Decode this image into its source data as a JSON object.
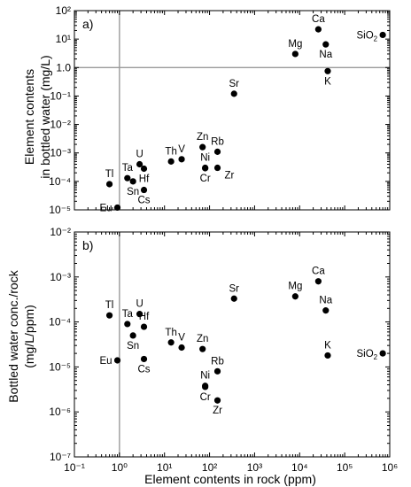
{
  "chart_data": [
    {
      "type": "scatter",
      "panel_label": "a)",
      "ylabel_lines": [
        "Element contents",
        "in bottled water (mg/L)"
      ],
      "xscale": "log",
      "yscale": "log",
      "xlim": [
        0.1,
        1000000
      ],
      "ylim": [
        1e-05,
        100
      ],
      "y_tick_exponents": [
        -5,
        -4,
        -3,
        -2,
        -1,
        0,
        1,
        2
      ],
      "y_tick_labels": [
        "10⁻⁵",
        "10⁻⁴",
        "10⁻³",
        "10⁻²",
        "10⁻¹",
        "1.0",
        "10¹",
        "10²"
      ],
      "reference_lines": {
        "x": 1,
        "y": 1
      },
      "points": [
        {
          "label": "Ca",
          "x": 26000,
          "y": 22,
          "pos": "above"
        },
        {
          "label": "Mg",
          "x": 8000,
          "y": 3,
          "pos": "above"
        },
        {
          "label": "Na",
          "x": 38000,
          "y": 6.5,
          "pos": "below"
        },
        {
          "label": "K",
          "x": 42000,
          "y": 0.75,
          "pos": "below"
        },
        {
          "label": "SiO",
          "sub": "2",
          "x": 700000,
          "y": 14,
          "pos": "left"
        },
        {
          "label": "Sr",
          "x": 350,
          "y": 0.12,
          "pos": "above"
        },
        {
          "label": "Zn",
          "x": 70,
          "y": 0.0016,
          "pos": "above"
        },
        {
          "label": "Rb",
          "x": 150,
          "y": 0.0011,
          "pos": "above"
        },
        {
          "label": "Th",
          "x": 14,
          "y": 0.0005,
          "pos": "above"
        },
        {
          "label": "V",
          "x": 24,
          "y": 0.0006,
          "pos": "above"
        },
        {
          "label": "Ni",
          "x": 80,
          "y": 0.0003,
          "pos": "above"
        },
        {
          "label": "Cr",
          "x": 80,
          "y": 0.00029,
          "pos": "below"
        },
        {
          "label": "Zr",
          "x": 150,
          "y": 0.0003,
          "pos": "right"
        },
        {
          "label": "U",
          "x": 2.8,
          "y": 0.0004,
          "pos": "above"
        },
        {
          "label": "Ta",
          "x": 1.5,
          "y": 0.00013,
          "pos": "above"
        },
        {
          "label": "Hf",
          "x": 3.5,
          "y": 0.00028,
          "pos": "below"
        },
        {
          "label": "Sn",
          "x": 2,
          "y": 0.0001,
          "pos": "below"
        },
        {
          "label": "Cs",
          "x": 3.5,
          "y": 5e-05,
          "pos": "below"
        },
        {
          "label": "Tl",
          "x": 0.6,
          "y": 8e-05,
          "pos": "above"
        },
        {
          "label": "Eu",
          "x": 0.9,
          "y": 1.2e-05,
          "pos": "left"
        }
      ]
    },
    {
      "type": "scatter",
      "panel_label": "b)",
      "ylabel_lines": [
        "Bottled water conc./rock",
        "(mg/L/ppm)"
      ],
      "xlabel": "Element contents in rock (ppm)",
      "xscale": "log",
      "yscale": "log",
      "xlim": [
        0.1,
        1000000
      ],
      "ylim": [
        1e-07,
        0.01
      ],
      "x_tick_exponents": [
        -1,
        0,
        1,
        2,
        3,
        4,
        5,
        6
      ],
      "x_tick_labels": [
        "10⁻¹",
        "10⁰",
        "10¹",
        "10²",
        "10³",
        "10⁴",
        "10⁵",
        "10⁶"
      ],
      "y_tick_exponents": [
        -7,
        -6,
        -5,
        -4,
        -3,
        -2
      ],
      "y_tick_labels": [
        "10⁻⁷",
        "10⁻⁶",
        "10⁻⁵",
        "10⁻⁴",
        "10⁻³",
        "10⁻²"
      ],
      "reference_lines": {
        "x": 1
      },
      "points": [
        {
          "label": "Ca",
          "x": 26000,
          "y": 0.0008,
          "pos": "above"
        },
        {
          "label": "Mg",
          "x": 8000,
          "y": 0.00037,
          "pos": "above"
        },
        {
          "label": "Na",
          "x": 38000,
          "y": 0.00018,
          "pos": "above"
        },
        {
          "label": "K",
          "x": 42000,
          "y": 1.8e-05,
          "pos": "above"
        },
        {
          "label": "SiO",
          "sub": "2",
          "x": 700000,
          "y": 2e-05,
          "pos": "left"
        },
        {
          "label": "Sr",
          "x": 350,
          "y": 0.00033,
          "pos": "above"
        },
        {
          "label": "Zn",
          "x": 70,
          "y": 2.5e-05,
          "pos": "above"
        },
        {
          "label": "Rb",
          "x": 150,
          "y": 8e-06,
          "pos": "above"
        },
        {
          "label": "Th",
          "x": 14,
          "y": 3.5e-05,
          "pos": "above"
        },
        {
          "label": "V",
          "x": 24,
          "y": 2.7e-05,
          "pos": "above"
        },
        {
          "label": "Ni",
          "x": 80,
          "y": 3.8e-06,
          "pos": "above"
        },
        {
          "label": "Cr",
          "x": 80,
          "y": 3.6e-06,
          "pos": "below"
        },
        {
          "label": "Zr",
          "x": 150,
          "y": 1.8e-06,
          "pos": "below"
        },
        {
          "label": "U",
          "x": 2.8,
          "y": 0.00015,
          "pos": "above"
        },
        {
          "label": "Ta",
          "x": 1.5,
          "y": 9e-05,
          "pos": "above"
        },
        {
          "label": "Hf",
          "x": 3.5,
          "y": 7.8e-05,
          "pos": "above"
        },
        {
          "label": "Sn",
          "x": 2,
          "y": 5e-05,
          "pos": "below"
        },
        {
          "label": "Cs",
          "x": 3.5,
          "y": 1.5e-05,
          "pos": "below"
        },
        {
          "label": "Tl",
          "x": 0.6,
          "y": 0.00014,
          "pos": "above"
        },
        {
          "label": "Eu",
          "x": 0.9,
          "y": 1.4e-05,
          "pos": "left"
        }
      ]
    }
  ],
  "colors": {
    "markers": "#000000",
    "reference_lines": "#9a9a9a",
    "axes": "#000000"
  }
}
